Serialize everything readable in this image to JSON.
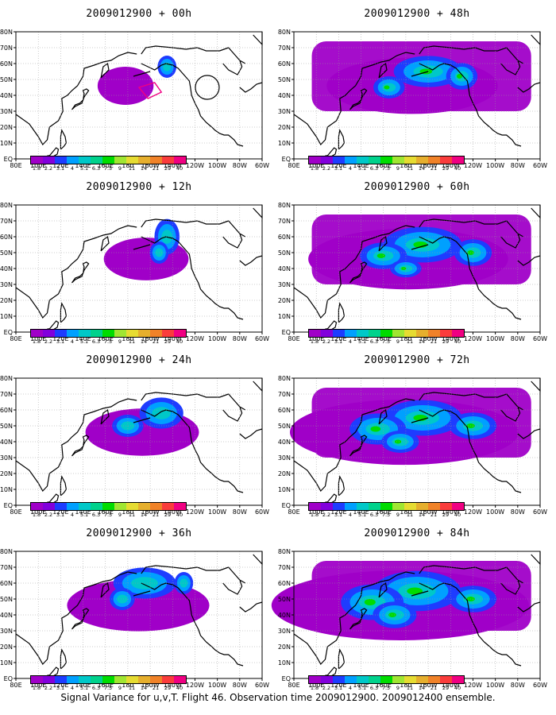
{
  "footer": "Signal Variance for u,v,T. Flight 46. Observation time 2009012900. 2009012400 ensemble.",
  "colorbar": {
    "levels": [
      "1.8",
      "2.2",
      "3.1",
      "4",
      "5.1",
      "6.3",
      "7.5",
      "9",
      "11",
      "14",
      "21",
      "29",
      "40"
    ],
    "colors": [
      "#a000c8",
      "#8200dc",
      "#1e3cff",
      "#00a0ff",
      "#00c8c8",
      "#00d28c",
      "#00dc00",
      "#a0e632",
      "#e6dc32",
      "#e6af2d",
      "#f08228",
      "#fa3c3c",
      "#f00082"
    ]
  },
  "axes": {
    "x_ticks": [
      "80E",
      "100E",
      "120E",
      "140E",
      "160E",
      "180",
      "160W",
      "140W",
      "120W",
      "100W",
      "80W",
      "60W"
    ],
    "y_ticks": [
      "EQ",
      "10N",
      "20N",
      "30N",
      "40N",
      "50N",
      "60N",
      "70N",
      "80N"
    ]
  },
  "panels": [
    {
      "title": "2009012900 + 00h",
      "lead_hours": 0
    },
    {
      "title": "2009012900 + 48h",
      "lead_hours": 48
    },
    {
      "title": "2009012900 + 12h",
      "lead_hours": 12
    },
    {
      "title": "2009012900 + 60h",
      "lead_hours": 60
    },
    {
      "title": "2009012900 + 24h",
      "lead_hours": 24
    },
    {
      "title": "2009012900 + 72h",
      "lead_hours": 72
    },
    {
      "title": "2009012900 + 36h",
      "lead_hours": 36
    },
    {
      "title": "2009012900 + 84h",
      "lead_hours": 84
    }
  ]
}
